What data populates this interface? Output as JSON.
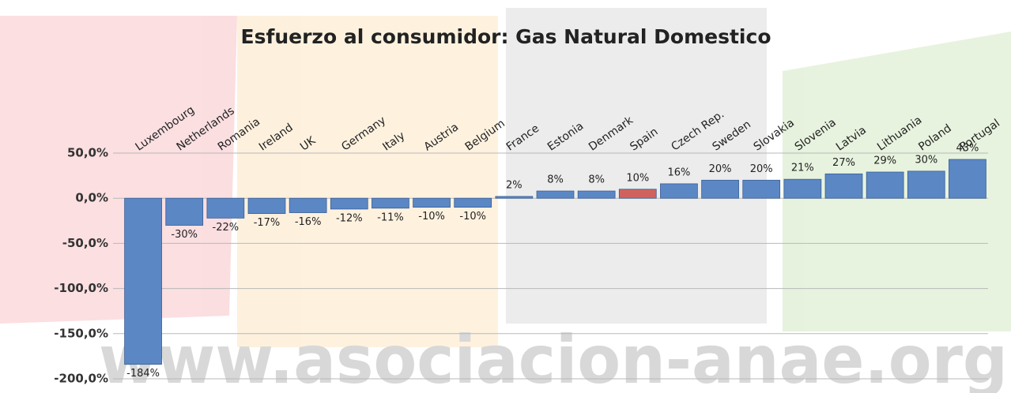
{
  "chart_data": {
    "type": "bar",
    "title": "Esfuerzo al consumidor: Gas Natural Domestico",
    "watermark": "www.asociacion-anae.org",
    "categories": [
      "Luxembourg",
      "Netherlands",
      "Romania",
      "Ireland",
      "UK",
      "Germany",
      "Italy",
      "Austria",
      "Belgium",
      "France",
      "Estonia",
      "Denmark",
      "Spain",
      "Czech Rep.",
      "Sweden",
      "Slovakia",
      "Slovenia",
      "Latvia",
      "Lithuania",
      "Poland",
      "Portugal"
    ],
    "values": [
      -184,
      -30,
      -22,
      -17,
      -16,
      -12,
      -11,
      -10,
      -10,
      2,
      8,
      8,
      10,
      16,
      20,
      20,
      21,
      27,
      29,
      30,
      43
    ],
    "value_labels": [
      "-184%",
      "-30%",
      "-22%",
      "-17%",
      "-16%",
      "-12%",
      "-11%",
      "-10%",
      "-10%",
      "2%",
      "8%",
      "8%",
      "10%",
      "16%",
      "20%",
      "20%",
      "21%",
      "27%",
      "29%",
      "30%",
      "43%"
    ],
    "colors": [
      "#5b87c5",
      "#5b87c5",
      "#5b87c5",
      "#5b87c5",
      "#5b87c5",
      "#5b87c5",
      "#5b87c5",
      "#5b87c5",
      "#5b87c5",
      "#5b87c5",
      "#5b87c5",
      "#5b87c5",
      "#d0625e",
      "#5b87c5",
      "#5b87c5",
      "#5b87c5",
      "#5b87c5",
      "#5b87c5",
      "#5b87c5",
      "#5b87c5",
      "#5b87c5"
    ],
    "ylim": [
      -200,
      50
    ],
    "yticks": [
      {
        "value": 50,
        "label": "50,0%"
      },
      {
        "value": 0,
        "label": "0,0%"
      },
      {
        "value": -50,
        "label": "-50,0%"
      },
      {
        "value": -100,
        "label": "-100,0%"
      },
      {
        "value": -150,
        "label": "-150,0%"
      },
      {
        "value": -200,
        "label": "-200,0%"
      }
    ],
    "grid": true
  }
}
